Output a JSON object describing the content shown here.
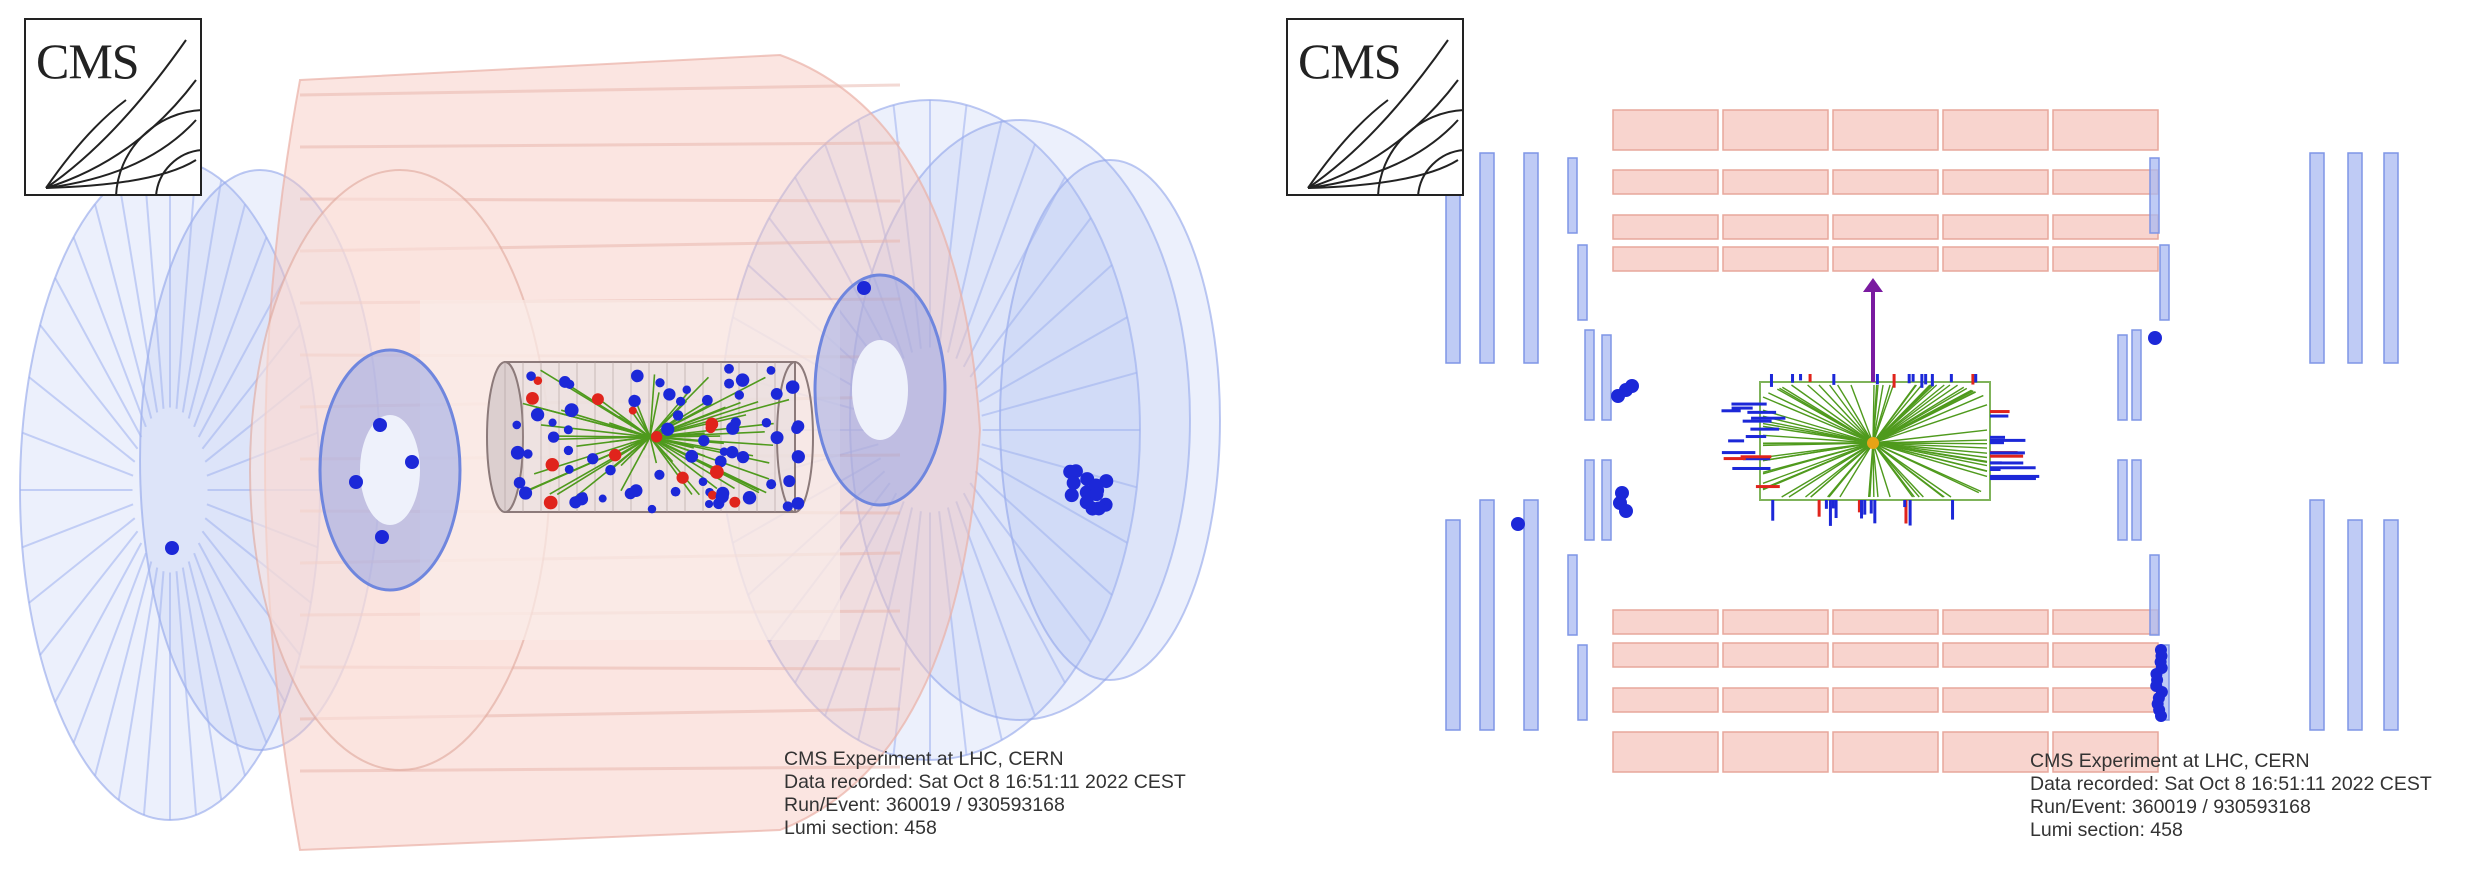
{
  "logo": {
    "text": "CMS"
  },
  "event_info": {
    "line1": "CMS Experiment at LHC, CERN",
    "line2": "Data recorded: Sat Oct  8 16:51:11 2022 CEST",
    "line3": "Run/Event: 360019 / 930593168",
    "line4": "Lumi section: 458"
  },
  "colors": {
    "muon_chambers": "#a9b9f2",
    "calorimeter": "#f6c6bd",
    "tracks": "#4f9a1d",
    "hits": "#1c28d8",
    "energy_deposits": "#e0241c",
    "met_arrow": "#7a1aa0",
    "vertex": "#e8a316"
  },
  "views": [
    {
      "name": "3D view"
    },
    {
      "name": "transverse view"
    }
  ]
}
